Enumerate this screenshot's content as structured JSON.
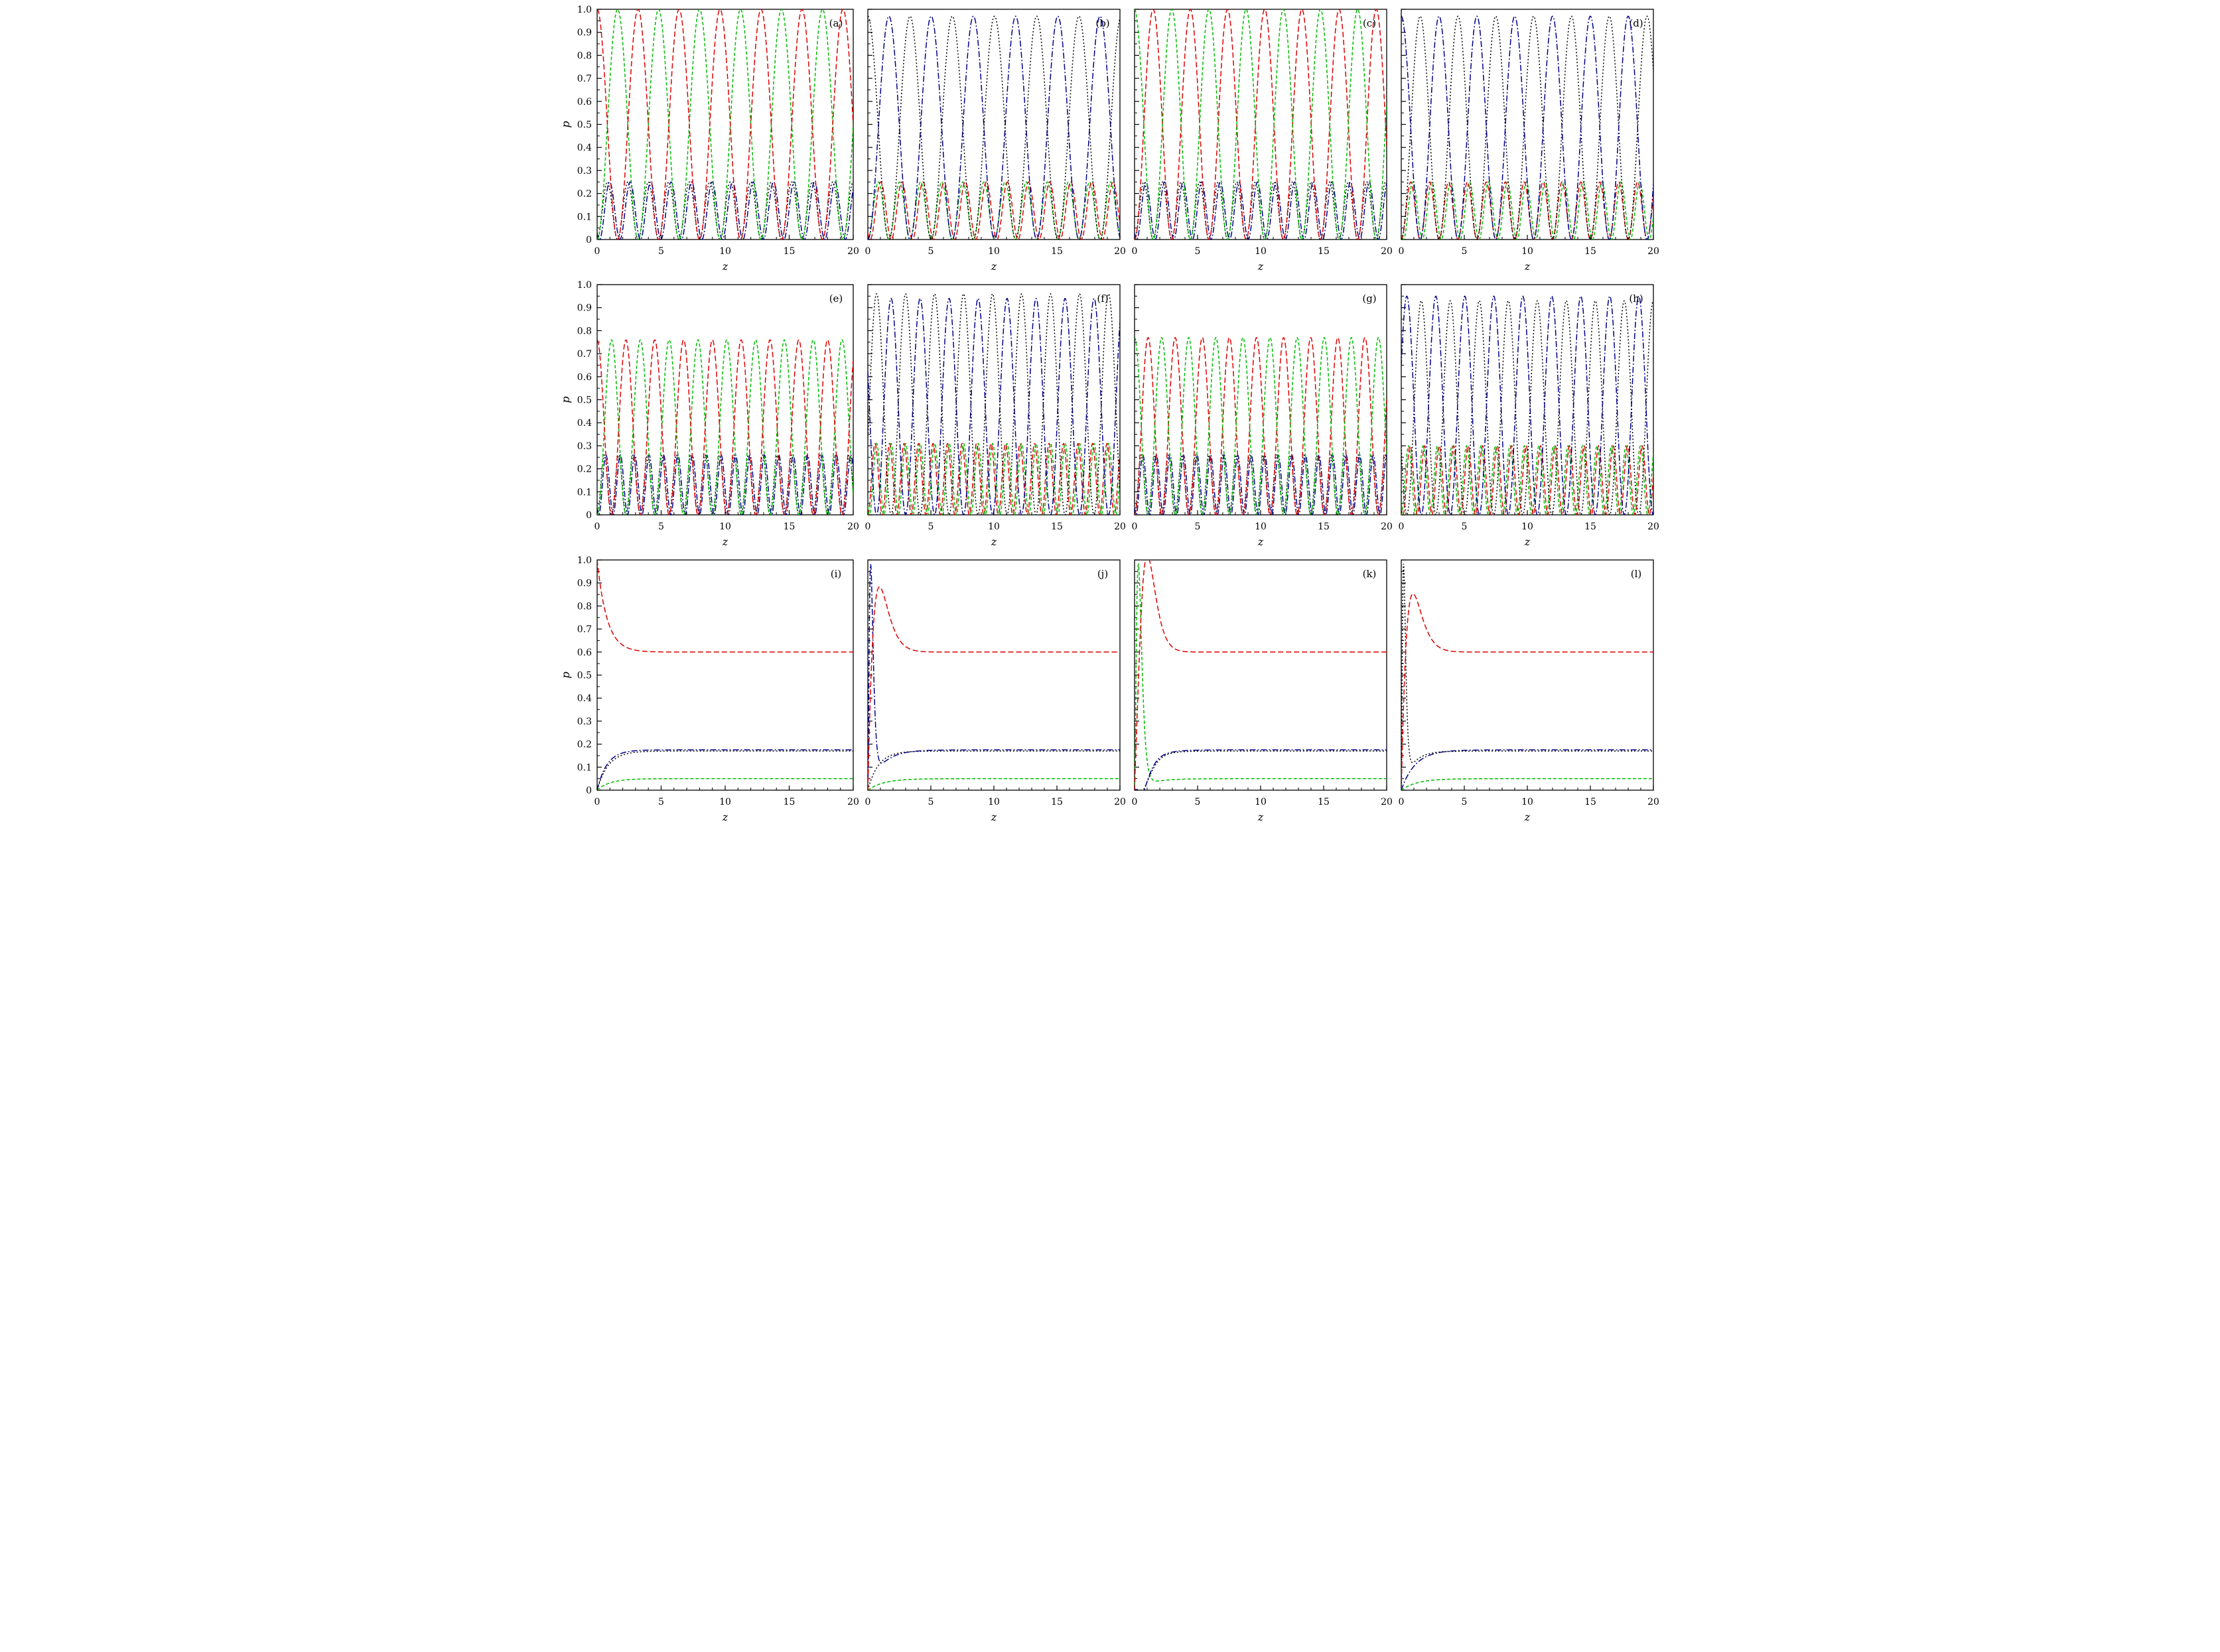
{
  "figure": {
    "description": "3x4 grid of line plots of probability p versus z showing oscillatory population dynamics (rows 1-2) and relaxation to steady state (row 3)"
  },
  "colors": {
    "red": "#dd0000",
    "green": "#00bb00",
    "navy": "#00008b",
    "black": "#000000"
  },
  "dashes": {
    "red": "8,4",
    "green": "5,3",
    "navy": "9,3,2,3",
    "black": "2,3"
  },
  "chart_data": {
    "type": "line",
    "layout": {
      "rows": 3,
      "cols": 4
    },
    "xlabel": "z",
    "ylabel": "p",
    "xlim": [
      0,
      20
    ],
    "ylim": [
      0,
      1
    ],
    "xticks": [
      0,
      5,
      10,
      15,
      20
    ],
    "xtick_labels": [
      "0",
      "5",
      "10",
      "15",
      "20"
    ],
    "x_minor_step": 1,
    "yticks": [
      0,
      0.1,
      0.2,
      0.3,
      0.4,
      0.5,
      0.6,
      0.7,
      0.8,
      0.9,
      1.0
    ],
    "ytick_labels": [
      "0",
      "0.1",
      "0.2",
      "0.3",
      "0.4",
      "0.5",
      "0.6",
      "0.7",
      "0.8",
      "0.9",
      "1.0"
    ],
    "y_minor_step": 0.05,
    "grid": false,
    "legend": "none",
    "panels": [
      {
        "label": "(a)",
        "series": [
          {
            "name": "p-black-dotted",
            "c": "black",
            "terms": [
              {
                "fn": "cos2",
                "A": 0.25,
                "T": 1.6,
                "phi": 1.5708
              }
            ]
          },
          {
            "name": "p-navy-dashdot",
            "c": "navy",
            "terms": [
              {
                "fn": "cos2",
                "A": 0.25,
                "T": 1.6,
                "phi": 1.22
              }
            ]
          },
          {
            "name": "p-green-dashed",
            "c": "green",
            "terms": [
              {
                "fn": "cos2",
                "A": 1.0,
                "T": 3.2,
                "phi": -1.5708
              }
            ]
          },
          {
            "name": "p-red-dashed",
            "c": "red",
            "terms": [
              {
                "fn": "cos2",
                "A": 1.0,
                "T": 3.2,
                "phi": 0
              }
            ]
          }
        ]
      },
      {
        "label": "(b)",
        "series": [
          {
            "name": "p-green-dashed",
            "c": "green",
            "terms": [
              {
                "fn": "cos2",
                "A": 0.25,
                "T": 1.675,
                "phi": 1.5708
              }
            ]
          },
          {
            "name": "p-red-dashed",
            "c": "red",
            "terms": [
              {
                "fn": "cos2",
                "A": 0.25,
                "T": 1.675,
                "phi": 1.22
              }
            ]
          },
          {
            "name": "p-navy-dashdot",
            "c": "navy",
            "terms": [
              {
                "fn": "cos2",
                "A": 0.97,
                "T": 3.35,
                "phi": -1.5708
              }
            ]
          },
          {
            "name": "p-black-dotted",
            "c": "black",
            "terms": [
              {
                "fn": "cos2",
                "A": 0.97,
                "T": 3.35,
                "phi": 0
              }
            ]
          }
        ]
      },
      {
        "label": "(c)",
        "series": [
          {
            "name": "p-black-dotted",
            "c": "black",
            "terms": [
              {
                "fn": "cos2",
                "A": 0.25,
                "T": 1.475,
                "phi": 1.5708
              }
            ]
          },
          {
            "name": "p-navy-dashdot",
            "c": "navy",
            "terms": [
              {
                "fn": "cos2",
                "A": 0.25,
                "T": 1.475,
                "phi": 1.22
              }
            ]
          },
          {
            "name": "p-red-dashed",
            "c": "red",
            "terms": [
              {
                "fn": "cos2",
                "A": 1.0,
                "T": 2.95,
                "phi": -1.5708
              }
            ]
          },
          {
            "name": "p-green-dashed",
            "c": "green",
            "terms": [
              {
                "fn": "cos2",
                "A": 1.0,
                "T": 2.95,
                "phi": 0
              }
            ]
          }
        ]
      },
      {
        "label": "(d)",
        "series": [
          {
            "name": "p-green-dashed",
            "c": "green",
            "terms": [
              {
                "fn": "cos2",
                "A": 0.25,
                "T": 1.5,
                "phi": 1.22
              }
            ]
          },
          {
            "name": "p-red-dashed",
            "c": "red",
            "terms": [
              {
                "fn": "cos2",
                "A": 0.25,
                "T": 1.5,
                "phi": 1.5708
              }
            ]
          },
          {
            "name": "p-black-dotted",
            "c": "black",
            "terms": [
              {
                "fn": "cos2",
                "A": 0.97,
                "T": 3.0,
                "phi": -1.5708
              }
            ]
          },
          {
            "name": "p-navy-dashdot",
            "c": "navy",
            "terms": [
              {
                "fn": "cos2",
                "A": 0.97,
                "T": 3.0,
                "phi": 0
              }
            ]
          }
        ]
      },
      {
        "label": "(e)",
        "series": [
          {
            "name": "p-black-dotted",
            "c": "black",
            "terms": [
              {
                "fn": "cos2",
                "A": 0.26,
                "T": 1.125,
                "phi": 1.5708
              }
            ]
          },
          {
            "name": "p-navy-dashdot",
            "c": "navy",
            "terms": [
              {
                "fn": "cos2",
                "A": 0.26,
                "T": 1.125,
                "phi": 1.22
              }
            ]
          },
          {
            "name": "p-green-dashed",
            "c": "green",
            "terms": [
              {
                "fn": "cos2",
                "A": 0.76,
                "T": 2.25,
                "phi": -1.5708
              }
            ]
          },
          {
            "name": "p-red-dashed",
            "c": "red",
            "terms": [
              {
                "fn": "cos2",
                "A": 0.76,
                "T": 2.25,
                "phi": 0
              }
            ]
          }
        ]
      },
      {
        "label": "(f)",
        "series": [
          {
            "name": "p-red-dashed",
            "c": "red",
            "terms": [
              {
                "fn": "cos2",
                "A": 0.31,
                "T": 1.15,
                "phi": 1.5708
              }
            ]
          },
          {
            "name": "p-green-dashed",
            "c": "green",
            "terms": [
              {
                "fn": "cos2",
                "A": 0.31,
                "T": 1.15,
                "phi": 1.22
              }
            ]
          },
          {
            "name": "p-navy-dashdot",
            "c": "navy",
            "terms": [
              {
                "fn": "cos2",
                "A": 0.94,
                "T": 2.3,
                "phi": 0.62
              }
            ]
          },
          {
            "name": "p-black-dotted",
            "c": "black",
            "terms": [
              {
                "fn": "cos2",
                "A": 0.96,
                "T": 2.3,
                "phi": -0.95
              }
            ]
          }
        ]
      },
      {
        "label": "(g)",
        "series": [
          {
            "name": "p-black-dotted",
            "c": "black",
            "terms": [
              {
                "fn": "cos2",
                "A": 0.26,
                "T": 1.075,
                "phi": 1.5708
              }
            ]
          },
          {
            "name": "p-navy-dashdot",
            "c": "navy",
            "terms": [
              {
                "fn": "cos2",
                "A": 0.26,
                "T": 1.075,
                "phi": 1.22
              }
            ]
          },
          {
            "name": "p-red-dashed",
            "c": "red",
            "terms": [
              {
                "fn": "cos2",
                "A": 0.77,
                "T": 2.15,
                "phi": -1.5708
              }
            ]
          },
          {
            "name": "p-green-dashed",
            "c": "green",
            "terms": [
              {
                "fn": "cos2",
                "A": 0.77,
                "T": 2.15,
                "phi": 0
              }
            ]
          }
        ]
      },
      {
        "label": "(h)",
        "series": [
          {
            "name": "p-green-dashed",
            "c": "green",
            "terms": [
              {
                "fn": "cos2",
                "A": 0.3,
                "T": 1.15,
                "phi": 1.5708
              }
            ]
          },
          {
            "name": "p-red-dashed",
            "c": "red",
            "terms": [
              {
                "fn": "cos2",
                "A": 0.3,
                "T": 1.15,
                "phi": 1.22
              }
            ]
          },
          {
            "name": "p-black-dotted",
            "c": "black",
            "terms": [
              {
                "fn": "cos2",
                "A": 0.93,
                "T": 2.3,
                "phi": 0.97
              }
            ]
          },
          {
            "name": "p-navy-dashdot",
            "c": "navy",
            "terms": [
              {
                "fn": "cos2",
                "A": 0.95,
                "T": 2.3,
                "phi": -0.6
              }
            ]
          }
        ]
      },
      {
        "label": "(i)",
        "series": [
          {
            "name": "p-green-dashed",
            "c": "green",
            "terms": [
              {
                "fn": "const",
                "A": 0.05
              },
              {
                "fn": "exp",
                "A": -0.05,
                "k": 1.0
              }
            ]
          },
          {
            "name": "p-black-dotted",
            "c": "black",
            "terms": [
              {
                "fn": "const",
                "A": 0.17
              },
              {
                "fn": "exp",
                "A": -0.17,
                "k": 1.15
              }
            ]
          },
          {
            "name": "p-navy-dashdot",
            "c": "navy",
            "terms": [
              {
                "fn": "const",
                "A": 0.175
              },
              {
                "fn": "exp",
                "A": -0.175,
                "k": 1.3
              }
            ]
          },
          {
            "name": "p-red-dashed",
            "c": "red",
            "terms": [
              {
                "fn": "const",
                "A": 0.6
              },
              {
                "fn": "exp",
                "A": 0.4,
                "k": 1.3
              }
            ]
          }
        ]
      },
      {
        "label": "(j)",
        "series": [
          {
            "name": "p-green-dashed",
            "c": "green",
            "terms": [
              {
                "fn": "const",
                "A": 0.05
              },
              {
                "fn": "exp",
                "A": -0.05,
                "k": 0.8
              }
            ]
          },
          {
            "name": "p-black-dotted",
            "c": "black",
            "terms": [
              {
                "fn": "const",
                "A": 0.17
              },
              {
                "fn": "exp",
                "A": -0.17,
                "k": 1.2
              }
            ]
          },
          {
            "name": "p-navy-dashdot",
            "c": "navy",
            "terms": [
              {
                "fn": "const",
                "A": 0.175
              },
              {
                "fn": "exp",
                "A": -0.175,
                "k": 0.9
              },
              {
                "fn": "pulse",
                "A": 0.95,
                "zp": 0.22,
                "n": 2
              }
            ]
          },
          {
            "name": "p-red-dashed",
            "c": "red",
            "terms": [
              {
                "fn": "const",
                "A": 0.6
              },
              {
                "fn": "exp",
                "A": -0.6,
                "k": 4
              },
              {
                "fn": "pulse",
                "A": 0.3,
                "zp": 0.85,
                "n": 2
              }
            ]
          }
        ]
      },
      {
        "label": "(k)",
        "series": [
          {
            "name": "p-green-dashed",
            "c": "green",
            "terms": [
              {
                "fn": "const",
                "A": 0.05
              },
              {
                "fn": "exp",
                "A": -0.05,
                "k": 0.8
              },
              {
                "fn": "pulse",
                "A": 0.97,
                "zp": 0.3,
                "n": 2
              }
            ]
          },
          {
            "name": "p-black-dotted",
            "c": "black",
            "terms": [
              {
                "fn": "const",
                "A": 0.17
              },
              {
                "fn": "exp",
                "A": -0.17,
                "k": 1.1
              },
              {
                "fn": "pulse",
                "A": -0.09,
                "zp": 0.7,
                "n": 2
              }
            ]
          },
          {
            "name": "p-navy-dashdot",
            "c": "navy",
            "terms": [
              {
                "fn": "const",
                "A": 0.175
              },
              {
                "fn": "exp",
                "A": -0.175,
                "k": 1.0
              },
              {
                "fn": "pulse",
                "A": -0.1,
                "zp": 0.6,
                "n": 2
              }
            ]
          },
          {
            "name": "p-red-dashed",
            "c": "red",
            "terms": [
              {
                "fn": "const",
                "A": 0.6
              },
              {
                "fn": "exp",
                "A": -0.6,
                "k": 3
              },
              {
                "fn": "pulse",
                "A": 0.45,
                "zp": 0.95,
                "n": 3
              }
            ]
          }
        ]
      },
      {
        "label": "(l)",
        "series": [
          {
            "name": "p-green-dashed",
            "c": "green",
            "terms": [
              {
                "fn": "const",
                "A": 0.05
              },
              {
                "fn": "exp",
                "A": -0.05,
                "k": 0.8
              }
            ]
          },
          {
            "name": "p-navy-dashdot",
            "c": "navy",
            "terms": [
              {
                "fn": "const",
                "A": 0.175
              },
              {
                "fn": "exp",
                "A": -0.175,
                "k": 0.9
              }
            ]
          },
          {
            "name": "p-black-dotted",
            "c": "black",
            "terms": [
              {
                "fn": "const",
                "A": 0.17
              },
              {
                "fn": "exp",
                "A": -0.17,
                "k": 1.2
              },
              {
                "fn": "pulse",
                "A": 0.95,
                "zp": 0.18,
                "n": 2
              }
            ]
          },
          {
            "name": "p-red-dashed",
            "c": "red",
            "terms": [
              {
                "fn": "const",
                "A": 0.6
              },
              {
                "fn": "exp",
                "A": -0.6,
                "k": 4
              },
              {
                "fn": "pulse",
                "A": 0.27,
                "zp": 0.85,
                "n": 2
              }
            ]
          }
        ]
      }
    ]
  }
}
